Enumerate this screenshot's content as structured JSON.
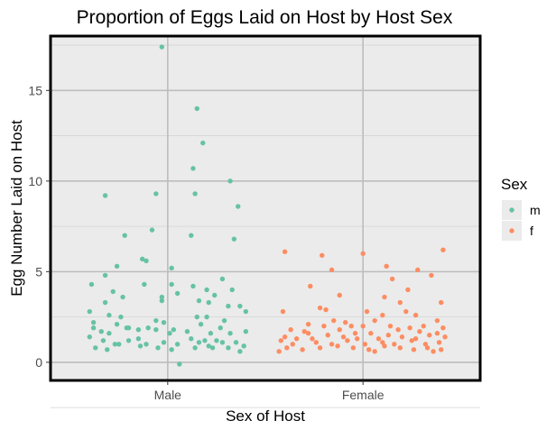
{
  "chart_data": {
    "type": "scatter",
    "title": "Proportion of Eggs Laid on Host by Host Sex",
    "xlabel": "Sex of Host",
    "ylabel": "Egg Number Laid on Host",
    "categories": [
      "Male",
      "Female"
    ],
    "ylim": [
      -1,
      18
    ],
    "yticks": [
      0,
      5,
      10,
      15
    ],
    "grid": true,
    "legend": {
      "title": "Sex",
      "position": "right",
      "entries": [
        {
          "key": "m",
          "color": "#66c2a5"
        },
        {
          "key": "f",
          "color": "#fc8d62"
        }
      ]
    },
    "series": [
      {
        "name": "m",
        "color": "#66c2a5",
        "category": "Male",
        "points": [
          [
            0.97,
            17.4
          ],
          [
            1.15,
            14.0
          ],
          [
            1.18,
            12.1
          ],
          [
            1.13,
            10.7
          ],
          [
            1.32,
            10.0
          ],
          [
            0.68,
            9.2
          ],
          [
            0.94,
            9.3
          ],
          [
            1.14,
            9.3
          ],
          [
            1.36,
            8.6
          ],
          [
            0.92,
            7.3
          ],
          [
            0.78,
            7.0
          ],
          [
            1.12,
            7.0
          ],
          [
            1.34,
            6.8
          ],
          [
            0.87,
            5.7
          ],
          [
            0.89,
            5.6
          ],
          [
            1.02,
            5.2
          ],
          [
            0.74,
            5.3
          ],
          [
            0.68,
            4.8
          ],
          [
            0.61,
            4.3
          ],
          [
            0.88,
            4.3
          ],
          [
            1.13,
            4.2
          ],
          [
            1.2,
            4.0
          ],
          [
            1.28,
            4.6
          ],
          [
            1.05,
            3.8
          ],
          [
            1.33,
            4.0
          ],
          [
            0.72,
            3.9
          ],
          [
            0.77,
            3.6
          ],
          [
            0.97,
            3.6
          ],
          [
            0.97,
            3.4
          ],
          [
            1.21,
            3.3
          ],
          [
            1.31,
            3.1
          ],
          [
            0.68,
            3.3
          ],
          [
            1.16,
            3.4
          ],
          [
            1.24,
            3.7
          ],
          [
            1.02,
            4.3
          ],
          [
            1.37,
            3.1
          ],
          [
            0.6,
            2.8
          ],
          [
            0.7,
            2.6
          ],
          [
            0.76,
            2.5
          ],
          [
            0.94,
            2.3
          ],
          [
            1.15,
            2.5
          ],
          [
            1.2,
            2.5
          ],
          [
            1.29,
            2.3
          ],
          [
            1.4,
            2.8
          ],
          [
            0.62,
            2.2
          ],
          [
            0.74,
            2.1
          ],
          [
            0.8,
            1.9
          ],
          [
            0.9,
            1.9
          ],
          [
            0.98,
            2.2
          ],
          [
            1.03,
            1.8
          ],
          [
            1.17,
            2.1
          ],
          [
            1.27,
            1.9
          ],
          [
            0.62,
            1.9
          ],
          [
            0.66,
            1.7
          ],
          [
            0.7,
            1.6
          ],
          [
            0.79,
            1.9
          ],
          [
            0.85,
            1.8
          ],
          [
            0.94,
            1.8
          ],
          [
            1.01,
            1.6
          ],
          [
            1.1,
            1.7
          ],
          [
            1.22,
            1.6
          ],
          [
            1.32,
            1.6
          ],
          [
            1.4,
            1.7
          ],
          [
            0.6,
            1.4
          ],
          [
            0.67,
            1.2
          ],
          [
            0.73,
            1.0
          ],
          [
            0.8,
            1.2
          ],
          [
            0.85,
            1.3
          ],
          [
            0.89,
            1.0
          ],
          [
            0.98,
            1.1
          ],
          [
            1.05,
            1.0
          ],
          [
            1.12,
            1.3
          ],
          [
            1.16,
            1.1
          ],
          [
            1.21,
            0.9
          ],
          [
            1.28,
            1.1
          ],
          [
            1.35,
            1.1
          ],
          [
            1.39,
            0.9
          ],
          [
            0.63,
            0.8
          ],
          [
            0.69,
            0.7
          ],
          [
            0.86,
            0.9
          ],
          [
            0.95,
            0.8
          ],
          [
            1.02,
            0.7
          ],
          [
            1.14,
            0.8
          ],
          [
            1.23,
            0.8
          ],
          [
            1.31,
            0.8
          ],
          [
            1.37,
            0.6
          ],
          [
            1.06,
            -0.1
          ],
          [
            0.75,
            1.0
          ],
          [
            1.19,
            1.2
          ],
          [
            1.25,
            1.2
          ]
        ]
      },
      {
        "name": "f",
        "color": "#fc8d62",
        "category": "Female",
        "points": [
          [
            1.6,
            6.1
          ],
          [
            1.79,
            5.9
          ],
          [
            2.0,
            6.0
          ],
          [
            2.41,
            6.2
          ],
          [
            1.84,
            5.1
          ],
          [
            2.12,
            5.3
          ],
          [
            2.28,
            5.1
          ],
          [
            2.15,
            4.6
          ],
          [
            2.35,
            4.8
          ],
          [
            1.73,
            4.2
          ],
          [
            2.23,
            4.0
          ],
          [
            1.88,
            3.7
          ],
          [
            2.11,
            3.6
          ],
          [
            1.78,
            3.0
          ],
          [
            2.19,
            3.3
          ],
          [
            2.4,
            3.3
          ],
          [
            1.81,
            2.9
          ],
          [
            2.1,
            2.6
          ],
          [
            2.22,
            2.8
          ],
          [
            2.27,
            2.6
          ],
          [
            1.59,
            2.8
          ],
          [
            2.02,
            2.8
          ],
          [
            1.85,
            2.3
          ],
          [
            1.91,
            2.2
          ],
          [
            2.06,
            2.3
          ],
          [
            2.38,
            2.3
          ],
          [
            1.72,
            2.1
          ],
          [
            1.8,
            2.0
          ],
          [
            1.94,
            2.0
          ],
          [
            2.0,
            2.0
          ],
          [
            2.14,
            2.0
          ],
          [
            2.24,
            1.9
          ],
          [
            2.31,
            2.0
          ],
          [
            2.41,
            1.9
          ],
          [
            1.63,
            1.8
          ],
          [
            1.7,
            1.7
          ],
          [
            1.88,
            1.8
          ],
          [
            1.96,
            1.6
          ],
          [
            2.04,
            1.6
          ],
          [
            2.18,
            1.8
          ],
          [
            2.29,
            1.7
          ],
          [
            2.38,
            1.6
          ],
          [
            1.6,
            1.4
          ],
          [
            1.66,
            1.3
          ],
          [
            1.74,
            1.3
          ],
          [
            1.82,
            1.5
          ],
          [
            1.9,
            1.4
          ],
          [
            1.97,
            1.3
          ],
          [
            2.08,
            1.3
          ],
          [
            2.13,
            1.5
          ],
          [
            2.2,
            1.4
          ],
          [
            2.27,
            1.3
          ],
          [
            2.34,
            1.5
          ],
          [
            2.42,
            1.4
          ],
          [
            1.58,
            1.2
          ],
          [
            1.64,
            1.0
          ],
          [
            1.76,
            1.1
          ],
          [
            1.84,
            1.0
          ],
          [
            1.92,
            1.2
          ],
          [
            2.01,
            1.0
          ],
          [
            2.1,
            1.1
          ],
          [
            2.16,
            1.0
          ],
          [
            2.25,
            1.2
          ],
          [
            2.32,
            1.0
          ],
          [
            2.39,
            1.1
          ],
          [
            1.61,
            0.8
          ],
          [
            1.69,
            0.7
          ],
          [
            1.78,
            0.8
          ],
          [
            1.87,
            0.9
          ],
          [
            1.95,
            0.8
          ],
          [
            2.03,
            0.7
          ],
          [
            2.11,
            0.9
          ],
          [
            2.19,
            0.8
          ],
          [
            2.26,
            0.7
          ],
          [
            2.33,
            0.8
          ],
          [
            2.4,
            0.7
          ],
          [
            1.57,
            0.6
          ],
          [
            2.06,
            0.6
          ],
          [
            2.36,
            0.6
          ],
          [
            1.72,
            1.6
          ]
        ]
      }
    ]
  }
}
